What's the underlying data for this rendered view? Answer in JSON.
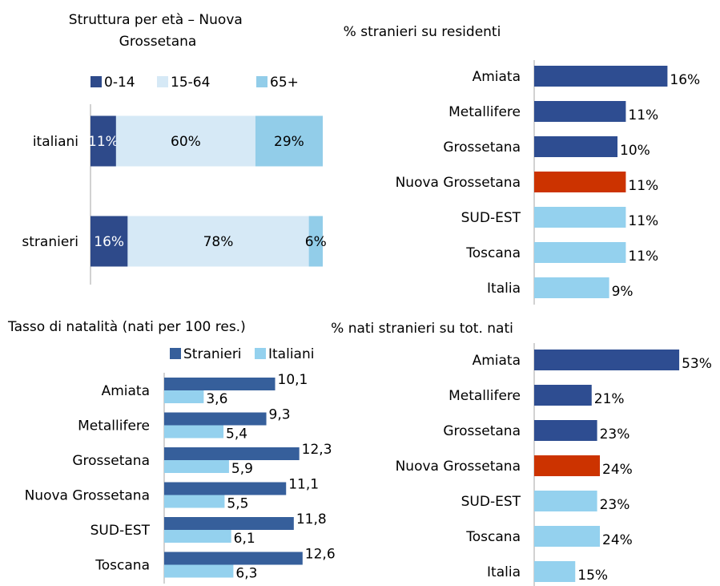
{
  "chart_data": [
    {
      "type": "stacked_bar",
      "orientation": "horizontal",
      "title": "Struttura per età – Nuova Grossetana",
      "categories": [
        "italiani",
        "stranieri"
      ],
      "series": [
        {
          "name": "0-14",
          "color": "#2e4a8a",
          "values": [
            11,
            16
          ],
          "value_labels": [
            "11%",
            "16%"
          ]
        },
        {
          "name": "15-64",
          "color": "#d6e9f6",
          "values": [
            60,
            78
          ],
          "value_labels": [
            "60%",
            "78%"
          ]
        },
        {
          "name": "65+",
          "color": "#92cde9",
          "values": [
            29,
            6
          ],
          "value_labels": [
            "29%",
            "6%"
          ]
        }
      ],
      "xlim": [
        0,
        100
      ],
      "legend": "top"
    },
    {
      "type": "bar",
      "orientation": "horizontal",
      "title": "% stranieri su residenti",
      "categories": [
        "Amiata",
        "Metallifere",
        "Grossetana",
        "Nuova Grossetana",
        "SUD-EST",
        "Toscana",
        "Italia"
      ],
      "values": [
        16,
        11,
        10,
        11,
        11,
        11,
        9
      ],
      "value_labels": [
        "16%",
        "11%",
        "10%",
        "11%",
        "11%",
        "11%",
        "9%"
      ],
      "colors": [
        "#2e4d91",
        "#2e4d91",
        "#2e4d91",
        "#cc3300",
        "#94d1ee",
        "#94d1ee",
        "#94d1ee"
      ],
      "xlim": [
        0,
        20
      ]
    },
    {
      "type": "bar",
      "orientation": "horizontal",
      "title": "Tasso di natalità (nati per 100 res.)",
      "categories": [
        "Amiata",
        "Metallifere",
        "Grossetana",
        "Nuova Grossetana",
        "SUD-EST",
        "Toscana"
      ],
      "series": [
        {
          "name": "Stranieri",
          "color": "#365f9b",
          "values": [
            10.1,
            9.3,
            12.3,
            11.1,
            11.8,
            12.6
          ],
          "value_labels": [
            "10,1",
            "9,3",
            "12,3",
            "11,1",
            "11,8",
            "12,6"
          ]
        },
        {
          "name": "Italiani",
          "color": "#94d1ee",
          "values": [
            3.6,
            5.4,
            5.9,
            5.5,
            6.1,
            6.3
          ],
          "value_labels": [
            "3,6",
            "5,4",
            "5,9",
            "5,5",
            "6,1",
            "6,3"
          ]
        }
      ],
      "xlim": [
        0,
        14
      ],
      "legend": "top"
    },
    {
      "type": "bar",
      "orientation": "horizontal",
      "title": "% nati stranieri su tot. nati",
      "categories": [
        "Amiata",
        "Metallifere",
        "Grossetana",
        "Nuova Grossetana",
        "SUD-EST",
        "Toscana",
        "Italia"
      ],
      "values": [
        53,
        21,
        23,
        24,
        23,
        24,
        15
      ],
      "value_labels": [
        "53%",
        "21%",
        "23%",
        "24%",
        "23%",
        "24%",
        "15%"
      ],
      "colors": [
        "#2e4d91",
        "#2e4d91",
        "#2e4d91",
        "#cc3300",
        "#94d1ee",
        "#94d1ee",
        "#94d1ee"
      ],
      "xlim": [
        0,
        60
      ]
    }
  ]
}
